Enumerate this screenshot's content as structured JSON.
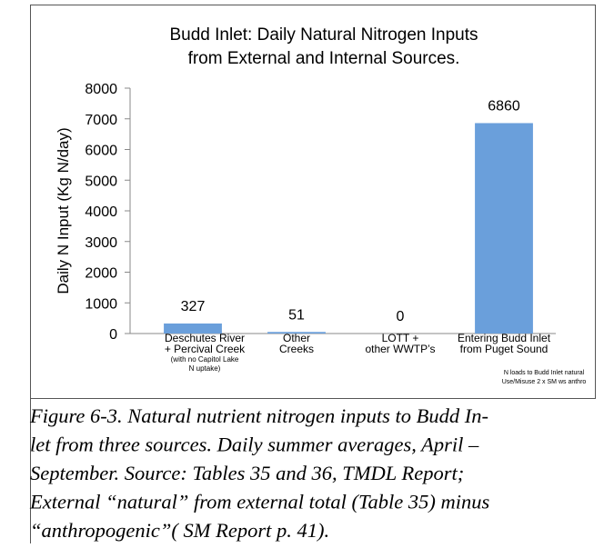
{
  "chart_data": {
    "type": "bar",
    "title": [
      "Budd Inlet: Daily Natural Nitrogen Inputs",
      "from External and Internal Sources."
    ],
    "y_label": "Daily N Input (Kg N/day)",
    "categories": [
      [
        "Deschutes River",
        "+ Percival Creek"
      ],
      [
        "Other",
        "Creeks"
      ],
      [
        "LOTT +",
        "other WWTP’s"
      ],
      [
        "Entering Budd Inlet",
        "from Puget Sound"
      ]
    ],
    "category_note": [
      "(with no Capitol Lake",
      "N uptake)"
    ],
    "values": [
      327,
      51,
      0,
      6860
    ],
    "color": "#6a9fdb",
    "ylim": [
      0,
      8000
    ],
    "yticks": [
      0,
      1000,
      2000,
      3000,
      4000,
      5000,
      6000,
      7000,
      8000
    ],
    "grid": false,
    "annotation": [
      "N loads to Budd Inlet natural",
      "Use/Misuse 2 x SM ws anthro"
    ]
  },
  "caption": [
    "Figure 6-3.  Natural nutrient nitrogen inputs to Budd In-",
    "let from three sources.  Daily summer averages, April –",
    "September.  Source: Tables 35 and 36, TMDL Report;",
    "External “natural” from external total (Table 35) minus",
    "“anthropogenic”( SM Report p. 41)."
  ]
}
